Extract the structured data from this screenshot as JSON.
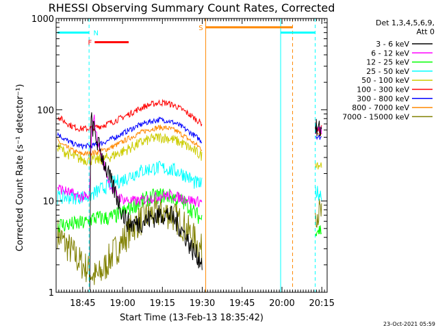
{
  "chart_data": {
    "type": "line",
    "title": "RHESSI Observing Summary Count Rates, Corrected",
    "xlabel": "Start Time (13-Feb-13 18:35:42)",
    "ylabel": "Corrected Count Rate (s⁻¹ detector⁻¹)",
    "y_scale": "log",
    "ylim": [
      1,
      1000
    ],
    "xlim_minutes_after_1835": [
      0,
      102
    ],
    "x_ticks": [
      {
        "label": "18:45",
        "t": 10
      },
      {
        "label": "19:00",
        "t": 25
      },
      {
        "label": "19:15",
        "t": 40
      },
      {
        "label": "19:30",
        "t": 55
      },
      {
        "label": "19:45",
        "t": 70
      },
      {
        "label": "20:00",
        "t": 85
      },
      {
        "label": "20:15",
        "t": 100
      }
    ],
    "y_ticks": [
      {
        "label": "1",
        "v": 1
      },
      {
        "label": "10",
        "v": 10
      },
      {
        "label": "100",
        "v": 100
      },
      {
        "label": "1000",
        "v": 1000
      }
    ],
    "legend": {
      "placement": "right",
      "header_line1": "Det 1,3,4,5,6,9,",
      "header_line2": "Att 0",
      "entries": [
        {
          "label": "3 - 6 keV",
          "color": "#000000"
        },
        {
          "label": "6 - 12 keV",
          "color": "#ff00ff"
        },
        {
          "label": "12 - 25 keV",
          "color": "#00ff00"
        },
        {
          "label": "25 - 50 keV",
          "color": "#00ffff"
        },
        {
          "label": "50 - 100 keV",
          "color": "#cccc00"
        },
        {
          "label": "100 - 300 keV",
          "color": "#ff0000"
        },
        {
          "label": "300 - 800 keV",
          "color": "#0000ff"
        },
        {
          "label": "800 - 7000 keV",
          "color": "#ff8800"
        },
        {
          "label": "7000 - 15000 keV",
          "color": "#808000"
        }
      ]
    },
    "intervals": [
      {
        "label": "N",
        "color": "#00ffff",
        "y": 700,
        "segments": [
          [
            0.5,
            12.5
          ],
          [
            84.5,
            97.5
          ]
        ]
      },
      {
        "label": "F",
        "color": "#ff0000",
        "y": 550,
        "segments": [
          [
            14.5,
            27.3
          ]
        ]
      },
      {
        "label": "S",
        "color": "#ff8800",
        "y": 800,
        "segments": [
          [
            56.3,
            89.0
          ]
        ]
      }
    ],
    "vertical_lines": [
      {
        "t": 12.4,
        "color": "#00ffff",
        "style": "dashed"
      },
      {
        "t": 56.3,
        "color": "#ff8800",
        "style": "solid"
      },
      {
        "t": 84.5,
        "color": "#00ffff",
        "style": "solid"
      },
      {
        "t": 89.0,
        "color": "#ff8800",
        "style": "dashed"
      },
      {
        "t": 97.5,
        "color": "#00ffff",
        "style": "dashed"
      }
    ],
    "series": [
      {
        "name": "3 - 6 keV",
        "color": "#000000",
        "noise": 0.12,
        "segments": [
          [
            [
              12.7,
              1.1
            ],
            [
              13.0,
              80
            ],
            [
              14,
              62
            ],
            [
              15,
              50
            ],
            [
              16,
              40
            ],
            [
              17,
              33
            ],
            [
              18,
              27
            ],
            [
              19,
              22
            ],
            [
              20,
              18
            ],
            [
              21,
              15
            ],
            [
              22,
              13
            ],
            [
              23,
              11
            ],
            [
              24,
              9
            ],
            [
              25,
              7.5
            ],
            [
              26,
              6.5
            ],
            [
              27,
              5.8
            ],
            [
              28,
              5.6
            ],
            [
              30,
              5.6
            ],
            [
              33,
              6
            ],
            [
              36,
              6.5
            ],
            [
              40,
              7.2
            ],
            [
              43,
              7
            ],
            [
              45,
              6
            ],
            [
              47,
              5
            ],
            [
              49,
              4
            ],
            [
              51,
              3
            ],
            [
              53,
              2.5
            ],
            [
              55,
              2.2
            ]
          ],
          [
            [
              97.5,
              62
            ],
            [
              98,
              60
            ],
            [
              99,
              60
            ],
            [
              100,
              61
            ]
          ]
        ]
      },
      {
        "name": "6 - 12 keV",
        "color": "#ff00ff",
        "noise": 0.06,
        "segments": [
          [
            [
              0.5,
              14
            ],
            [
              3,
              13
            ],
            [
              6,
              12
            ],
            [
              9,
              11.2
            ],
            [
              11,
              11
            ],
            [
              12.5,
              10.5
            ],
            [
              13,
              30
            ],
            [
              13.5,
              60
            ],
            [
              14,
              90
            ],
            [
              14.5,
              75
            ],
            [
              15,
              55
            ],
            [
              16,
              40
            ],
            [
              17,
              32
            ],
            [
              18,
              25
            ],
            [
              19,
              20
            ],
            [
              20,
              16
            ],
            [
              21,
              14
            ],
            [
              22,
              12.5
            ],
            [
              23,
              11.5
            ],
            [
              24,
              11
            ],
            [
              25,
              10.5
            ],
            [
              28,
              10
            ],
            [
              31,
              10
            ],
            [
              34,
              10.5
            ],
            [
              37,
              11
            ],
            [
              40,
              11.5
            ],
            [
              43,
              11.5
            ],
            [
              46,
              11
            ],
            [
              49,
              10.5
            ],
            [
              52,
              10
            ],
            [
              55,
              9.8
            ]
          ],
          [
            [
              97.5,
              60
            ],
            [
              98,
              58
            ],
            [
              99,
              58
            ],
            [
              100,
              60
            ]
          ]
        ]
      },
      {
        "name": "12 - 25 keV",
        "color": "#00ff00",
        "noise": 0.09,
        "segments": [
          [
            [
              0.5,
              5.5
            ],
            [
              4,
              5.5
            ],
            [
              8,
              5.6
            ],
            [
              11,
              5.8
            ],
            [
              12.5,
              6
            ],
            [
              14,
              6.5
            ],
            [
              16,
              6.5
            ],
            [
              18,
              6.5
            ],
            [
              20,
              6.5
            ],
            [
              22,
              6.8
            ],
            [
              24,
              7.2
            ],
            [
              26,
              7.8
            ],
            [
              28,
              8.5
            ],
            [
              31,
              9.5
            ],
            [
              34,
              10.5
            ],
            [
              37,
              11.2
            ],
            [
              40,
              11.5
            ],
            [
              43,
              11.2
            ],
            [
              46,
              10.5
            ],
            [
              49,
              9.2
            ],
            [
              52,
              7.5
            ],
            [
              55,
              6.2
            ]
          ],
          [
            [
              97.5,
              5
            ],
            [
              99,
              4.8
            ],
            [
              100,
              4.8
            ]
          ]
        ]
      },
      {
        "name": "25 - 50 keV",
        "color": "#00ffff",
        "noise": 0.08,
        "segments": [
          [
            [
              0.5,
              11
            ],
            [
              4,
              11
            ],
            [
              8,
              11
            ],
            [
              12,
              11.2
            ],
            [
              14,
              12
            ],
            [
              16,
              13
            ],
            [
              18,
              14
            ],
            [
              20,
              15
            ],
            [
              22,
              16
            ],
            [
              25,
              17
            ],
            [
              28,
              19
            ],
            [
              31,
              21
            ],
            [
              34,
              22
            ],
            [
              37,
              23
            ],
            [
              40,
              23
            ],
            [
              43,
              22
            ],
            [
              46,
              21
            ],
            [
              49,
              19
            ],
            [
              52,
              16
            ],
            [
              55,
              15
            ]
          ],
          [
            [
              97.5,
              13
            ],
            [
              99,
              12
            ],
            [
              100,
              12
            ]
          ]
        ]
      },
      {
        "name": "50 - 100 keV",
        "color": "#cccc00",
        "noise": 0.06,
        "segments": [
          [
            [
              0.5,
              40
            ],
            [
              3,
              35
            ],
            [
              6,
              31
            ],
            [
              9,
              29
            ],
            [
              12,
              28
            ],
            [
              15,
              28
            ],
            [
              18,
              29
            ],
            [
              21,
              31
            ],
            [
              24,
              34
            ],
            [
              27,
              37
            ],
            [
              30,
              41
            ],
            [
              33,
              45
            ],
            [
              36,
              48
            ],
            [
              39,
              50
            ],
            [
              42,
              49
            ],
            [
              45,
              46
            ],
            [
              48,
              42
            ],
            [
              51,
              37
            ],
            [
              55,
              31
            ]
          ],
          [
            [
              97.5,
              27
            ],
            [
              99,
              25
            ],
            [
              100,
              25
            ]
          ]
        ]
      },
      {
        "name": "100 - 300 keV",
        "color": "#ff0000",
        "noise": 0.035,
        "segments": [
          [
            [
              0.5,
              85
            ],
            [
              3,
              75
            ],
            [
              6,
              66
            ],
            [
              9,
              62
            ],
            [
              12,
              62
            ],
            [
              15,
              64
            ],
            [
              18,
              68
            ],
            [
              21,
              73
            ],
            [
              24,
              80
            ],
            [
              27,
              88
            ],
            [
              30,
              98
            ],
            [
              33,
              108
            ],
            [
              36,
              115
            ],
            [
              39,
              120
            ],
            [
              42,
              118
            ],
            [
              45,
              110
            ],
            [
              48,
              98
            ],
            [
              51,
              85
            ],
            [
              55,
              70
            ]
          ],
          [
            [
              97.5,
              62
            ],
            [
              99,
              60
            ],
            [
              100,
              63
            ]
          ]
        ]
      },
      {
        "name": "300 - 800 keV",
        "color": "#0000ff",
        "noise": 0.03,
        "segments": [
          [
            [
              0.5,
              55
            ],
            [
              3,
              48
            ],
            [
              6,
              43
            ],
            [
              9,
              40
            ],
            [
              12,
              40
            ],
            [
              15,
              41
            ],
            [
              18,
              44
            ],
            [
              21,
              48
            ],
            [
              24,
              53
            ],
            [
              27,
              59
            ],
            [
              30,
              65
            ],
            [
              33,
              71
            ],
            [
              36,
              75
            ],
            [
              39,
              78
            ],
            [
              42,
              76
            ],
            [
              45,
              71
            ],
            [
              48,
              63
            ],
            [
              51,
              55
            ],
            [
              55,
              45
            ]
          ],
          [
            [
              97.5,
              52
            ],
            [
              99,
              50
            ],
            [
              100,
              50
            ]
          ]
        ]
      },
      {
        "name": "800 - 7000 keV",
        "color": "#ff8800",
        "noise": 0.03,
        "segments": [
          [
            [
              0.5,
              46
            ],
            [
              3,
              40
            ],
            [
              6,
              36
            ],
            [
              9,
              33
            ],
            [
              12,
              33
            ],
            [
              15,
              34
            ],
            [
              18,
              36
            ],
            [
              21,
              39
            ],
            [
              24,
              43
            ],
            [
              27,
              48
            ],
            [
              30,
              53
            ],
            [
              33,
              58
            ],
            [
              36,
              62
            ],
            [
              39,
              64
            ],
            [
              42,
              63
            ],
            [
              45,
              59
            ],
            [
              48,
              52
            ],
            [
              51,
              45
            ],
            [
              55,
              37
            ]
          ],
          [
            [
              97.5,
              57
            ],
            [
              99,
              55
            ],
            [
              100,
              55
            ]
          ]
        ]
      },
      {
        "name": "7000 - 15000 keV",
        "color": "#808000",
        "noise": 0.18,
        "segments": [
          [
            [
              0.5,
              4.5
            ],
            [
              3,
              3.5
            ],
            [
              6,
              2.8
            ],
            [
              8,
              2.3
            ],
            [
              10,
              2
            ],
            [
              12,
              1.8
            ],
            [
              14,
              1.5
            ],
            [
              16,
              1.5
            ],
            [
              18,
              1.8
            ],
            [
              20,
              2.3
            ],
            [
              22,
              2.8
            ],
            [
              24,
              3.3
            ],
            [
              26,
              4
            ],
            [
              28,
              4.8
            ],
            [
              30,
              5.6
            ],
            [
              33,
              6.5
            ],
            [
              36,
              7.2
            ],
            [
              40,
              7.5
            ],
            [
              43,
              7.2
            ],
            [
              46,
              6.2
            ],
            [
              49,
              5
            ],
            [
              52,
              3.8
            ],
            [
              55,
              2.8
            ]
          ],
          [
            [
              97.5,
              8
            ],
            [
              99,
              7.5
            ],
            [
              100,
              7
            ]
          ]
        ]
      }
    ]
  },
  "footer": {
    "timestamp": "23-Oct-2021 05:59"
  }
}
